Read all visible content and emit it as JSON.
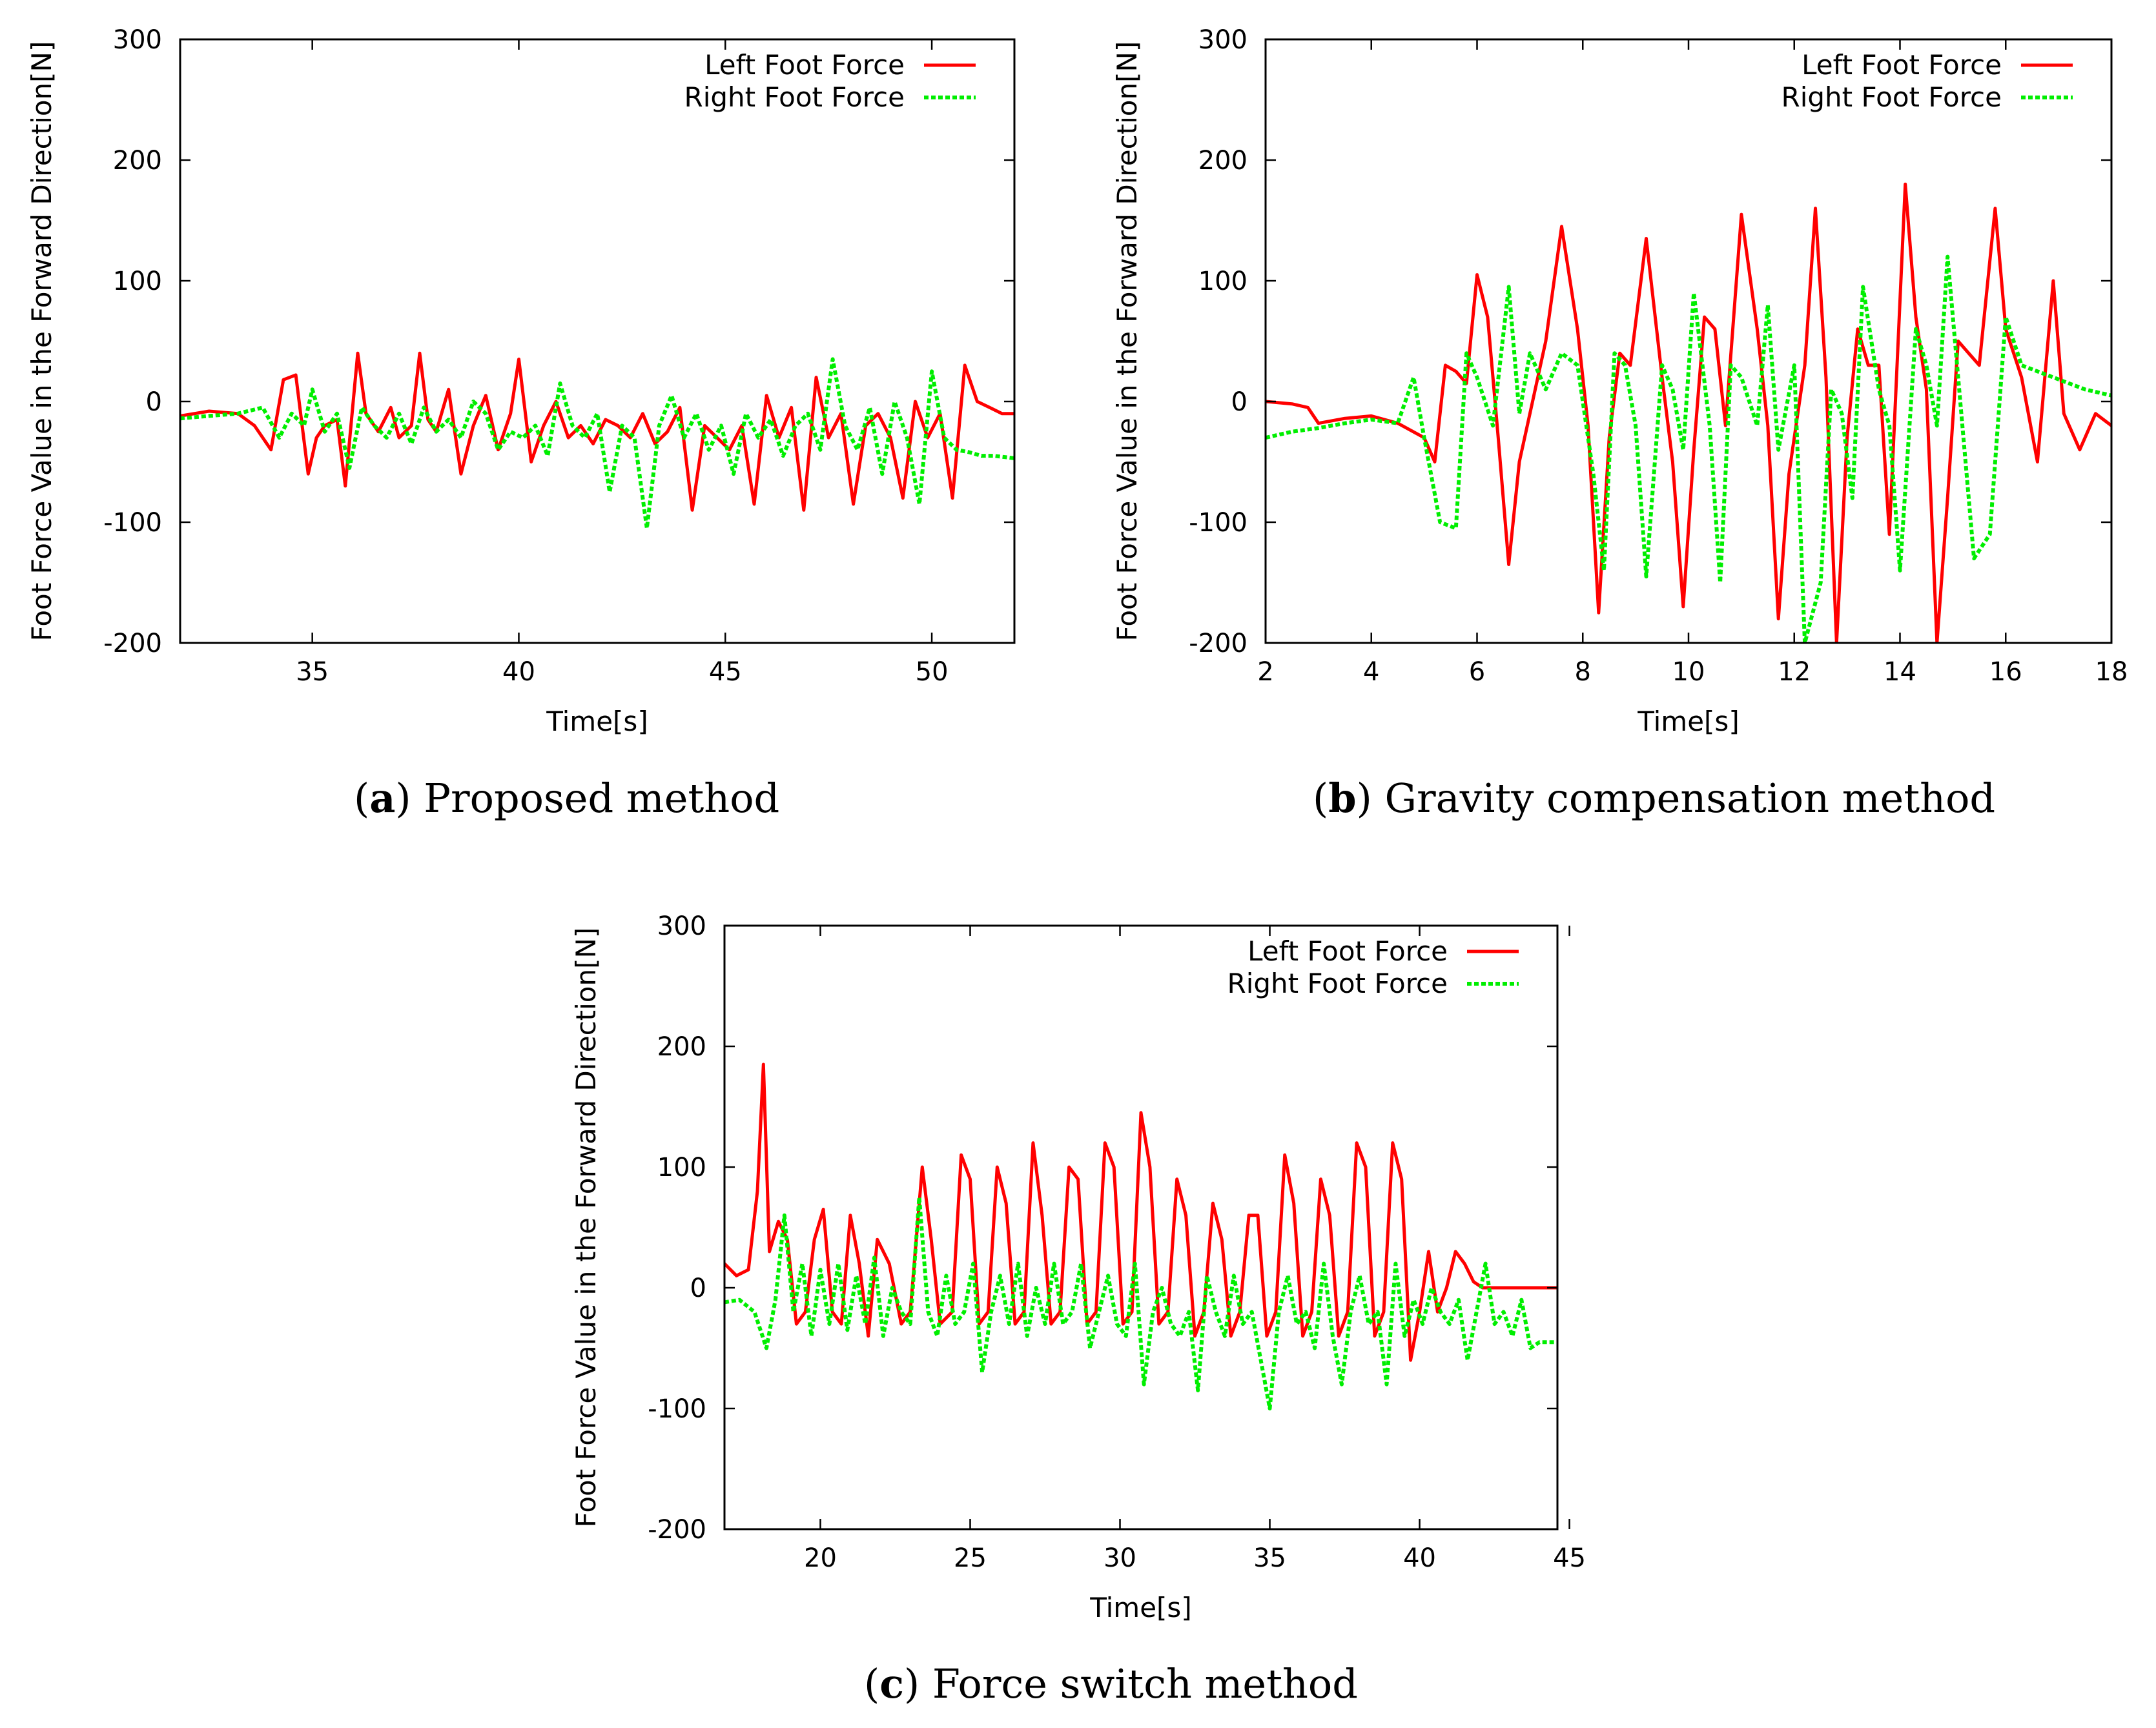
{
  "colors": {
    "left": "#ff0000",
    "right": "#00ee00",
    "axis": "#000000"
  },
  "panels": [
    {
      "caption_letter": "a",
      "caption_text": "Proposed method",
      "chart_data": {
        "type": "line",
        "title": "",
        "xlabel": "Time[s]",
        "ylabel": "Foot Force Value in the Forward Direction[N]",
        "xlim": [
          31.8,
          52
        ],
        "ylim": [
          -200,
          300
        ],
        "xticks": [
          35,
          40,
          45,
          50
        ],
        "yticks": [
          -200,
          -100,
          0,
          100,
          200,
          300
        ],
        "legend": "top-right",
        "series": [
          {
            "name": "Left Foot Force",
            "style": "solid",
            "x": [
              31.8,
              32.5,
              33.2,
              33.6,
              34.0,
              34.3,
              34.6,
              34.9,
              35.1,
              35.3,
              35.6,
              35.8,
              36.1,
              36.3,
              36.6,
              36.9,
              37.1,
              37.4,
              37.6,
              37.8,
              38.0,
              38.3,
              38.6,
              38.9,
              39.2,
              39.5,
              39.8,
              40.0,
              40.3,
              40.6,
              40.9,
              41.2,
              41.5,
              41.8,
              42.1,
              42.4,
              42.7,
              43.0,
              43.3,
              43.6,
              43.9,
              44.2,
              44.5,
              44.8,
              45.1,
              45.4,
              45.7,
              46.0,
              46.3,
              46.6,
              46.9,
              47.2,
              47.5,
              47.8,
              48.1,
              48.4,
              48.7,
              49.0,
              49.3,
              49.6,
              49.9,
              50.2,
              50.5,
              50.8,
              51.1,
              51.4,
              51.7,
              52.0
            ],
            "y": [
              -12,
              -8,
              -10,
              -20,
              -40,
              18,
              22,
              -60,
              -30,
              -20,
              -15,
              -70,
              40,
              -10,
              -25,
              -5,
              -30,
              -20,
              40,
              -15,
              -25,
              10,
              -60,
              -20,
              5,
              -40,
              -10,
              35,
              -50,
              -20,
              0,
              -30,
              -20,
              -35,
              -15,
              -20,
              -30,
              -10,
              -35,
              -25,
              -5,
              -90,
              -20,
              -30,
              -40,
              -20,
              -85,
              5,
              -30,
              -5,
              -90,
              20,
              -30,
              -10,
              -85,
              -20,
              -10,
              -30,
              -80,
              0,
              -30,
              -10,
              -80,
              30,
              0,
              -5,
              -10,
              -10
            ]
          },
          {
            "name": "Right Foot Force",
            "style": "dashed",
            "x": [
              31.8,
              32.5,
              33.2,
              33.8,
              34.2,
              34.5,
              34.8,
              35.0,
              35.3,
              35.6,
              35.9,
              36.2,
              36.5,
              36.8,
              37.1,
              37.4,
              37.7,
              38.0,
              38.3,
              38.6,
              38.9,
              39.2,
              39.5,
              39.8,
              40.1,
              40.4,
              40.7,
              41.0,
              41.3,
              41.6,
              41.9,
              42.2,
              42.5,
              42.8,
              43.1,
              43.4,
              43.7,
              44.0,
              44.3,
              44.6,
              44.9,
              45.2,
              45.5,
              45.8,
              46.1,
              46.4,
              46.7,
              47.0,
              47.3,
              47.6,
              47.9,
              48.2,
              48.5,
              48.8,
              49.1,
              49.4,
              49.7,
              50.0,
              50.3,
              50.6,
              50.9,
              51.2,
              51.5,
              52.0
            ],
            "y": [
              -14,
              -12,
              -10,
              -5,
              -30,
              -10,
              -20,
              10,
              -25,
              -10,
              -55,
              -5,
              -20,
              -30,
              -10,
              -35,
              -5,
              -25,
              -15,
              -30,
              0,
              -10,
              -40,
              -25,
              -30,
              -20,
              -45,
              15,
              -20,
              -30,
              -10,
              -75,
              -20,
              -30,
              -105,
              -20,
              5,
              -30,
              -10,
              -40,
              -20,
              -60,
              -10,
              -30,
              -15,
              -45,
              -20,
              -10,
              -40,
              35,
              -20,
              -40,
              -5,
              -60,
              0,
              -30,
              -85,
              25,
              -30,
              -40,
              -42,
              -45,
              -45,
              -47
            ]
          }
        ]
      }
    },
    {
      "caption_letter": "b",
      "caption_text": "Gravity compensation method",
      "chart_data": {
        "type": "line",
        "title": "",
        "xlabel": "Time[s]",
        "ylabel": "Foot Force Value in the Forward Direction[N]",
        "xlim": [
          2,
          18
        ],
        "ylim": [
          -200,
          300
        ],
        "xticks": [
          2,
          4,
          6,
          8,
          10,
          12,
          14,
          16,
          18
        ],
        "yticks": [
          -200,
          -100,
          0,
          100,
          200,
          300
        ],
        "legend": "top-right",
        "series": [
          {
            "name": "Left Foot Force",
            "style": "solid",
            "x": [
              2.0,
              2.5,
              2.8,
              3.0,
              3.5,
              4.0,
              4.5,
              5.0,
              5.2,
              5.4,
              5.6,
              5.8,
              6.0,
              6.2,
              6.4,
              6.6,
              6.8,
              7.0,
              7.3,
              7.6,
              7.9,
              8.1,
              8.3,
              8.5,
              8.7,
              8.9,
              9.2,
              9.5,
              9.7,
              9.9,
              10.1,
              10.3,
              10.5,
              10.7,
              11.0,
              11.3,
              11.5,
              11.7,
              11.9,
              12.2,
              12.4,
              12.6,
              12.8,
              13.0,
              13.2,
              13.4,
              13.6,
              13.8,
              14.1,
              14.3,
              14.5,
              14.7,
              14.9,
              15.1,
              15.3,
              15.5,
              15.8,
              16.0,
              16.3,
              16.6,
              16.9,
              17.1,
              17.4,
              17.7,
              18.0
            ],
            "y": [
              0,
              -2,
              -5,
              -18,
              -14,
              -12,
              -18,
              -30,
              -50,
              30,
              25,
              15,
              105,
              70,
              -30,
              -135,
              -50,
              -10,
              50,
              145,
              60,
              -20,
              -175,
              -30,
              40,
              30,
              135,
              20,
              -50,
              -170,
              -40,
              70,
              60,
              -20,
              155,
              60,
              -20,
              -180,
              -60,
              30,
              160,
              20,
              -200,
              -30,
              60,
              30,
              30,
              -110,
              180,
              70,
              10,
              -200,
              -80,
              50,
              40,
              30,
              160,
              60,
              20,
              -50,
              100,
              -10,
              -40,
              -10,
              -20
            ]
          },
          {
            "name": "Right Foot Force",
            "style": "dashed",
            "x": [
              2.0,
              2.5,
              3.0,
              3.5,
              4.0,
              4.5,
              4.8,
              5.0,
              5.3,
              5.6,
              5.8,
              6.0,
              6.3,
              6.6,
              6.8,
              7.0,
              7.3,
              7.6,
              7.9,
              8.2,
              8.4,
              8.6,
              8.8,
              9.0,
              9.2,
              9.5,
              9.7,
              9.9,
              10.1,
              10.4,
              10.6,
              10.8,
              11.0,
              11.3,
              11.5,
              11.7,
              12.0,
              12.2,
              12.5,
              12.7,
              12.9,
              13.1,
              13.3,
              13.6,
              13.8,
              14.0,
              14.3,
              14.5,
              14.7,
              14.9,
              15.1,
              15.4,
              15.7,
              16.0,
              16.3,
              16.6,
              16.9,
              17.2,
              17.5,
              18.0
            ],
            "y": [
              -30,
              -25,
              -22,
              -18,
              -15,
              -18,
              20,
              -30,
              -100,
              -105,
              40,
              20,
              -20,
              95,
              -10,
              40,
              10,
              40,
              30,
              -60,
              -140,
              40,
              30,
              -20,
              -145,
              30,
              10,
              -40,
              90,
              -20,
              -150,
              30,
              20,
              -20,
              80,
              -40,
              30,
              -200,
              -150,
              10,
              -10,
              -80,
              95,
              10,
              -20,
              -140,
              60,
              30,
              -20,
              120,
              20,
              -130,
              -110,
              70,
              30,
              25,
              20,
              15,
              10,
              5
            ]
          }
        ]
      }
    },
    {
      "caption_letter": "c",
      "caption_text": "Force switch method",
      "chart_data": {
        "type": "line",
        "title": "",
        "xlabel": "Time[s]",
        "ylabel": "Foot Force Value in the Forward Direction[N]",
        "xlim": [
          16.8,
          44.6
        ],
        "ylim": [
          -200,
          300
        ],
        "xticks": [
          20,
          25,
          30,
          35,
          40,
          45
        ],
        "yticks": [
          -200,
          -100,
          0,
          100,
          200,
          300
        ],
        "legend": "top-right",
        "series": [
          {
            "name": "Left Foot Force",
            "style": "solid",
            "x": [
              16.8,
              17.2,
              17.6,
              17.9,
              18.1,
              18.3,
              18.6,
              18.9,
              19.2,
              19.5,
              19.8,
              20.1,
              20.4,
              20.7,
              21.0,
              21.3,
              21.6,
              21.9,
              22.3,
              22.7,
              23.0,
              23.4,
              23.7,
              24.0,
              24.4,
              24.7,
              25.0,
              25.3,
              25.6,
              25.9,
              26.2,
              26.5,
              26.8,
              27.1,
              27.4,
              27.7,
              28.0,
              28.3,
              28.6,
              28.9,
              29.2,
              29.5,
              29.8,
              30.1,
              30.4,
              30.7,
              31.0,
              31.3,
              31.6,
              31.9,
              32.2,
              32.5,
              32.8,
              33.1,
              33.4,
              33.7,
              34.0,
              34.3,
              34.6,
              34.9,
              35.2,
              35.5,
              35.8,
              36.1,
              36.4,
              36.7,
              37.0,
              37.3,
              37.6,
              37.9,
              38.2,
              38.5,
              38.8,
              39.1,
              39.4,
              39.7,
              40.0,
              40.3,
              40.6,
              40.9,
              41.2,
              41.5,
              41.8,
              42.1,
              42.4,
              42.7,
              43.0,
              43.3,
              43.6,
              44.0,
              44.6
            ],
            "y": [
              20,
              10,
              15,
              80,
              185,
              30,
              55,
              40,
              -30,
              -20,
              40,
              65,
              -20,
              -30,
              60,
              20,
              -40,
              40,
              20,
              -30,
              -20,
              100,
              40,
              -30,
              -20,
              110,
              90,
              -30,
              -20,
              100,
              70,
              -30,
              -20,
              120,
              60,
              -30,
              -20,
              100,
              90,
              -30,
              -20,
              120,
              100,
              -30,
              -20,
              145,
              100,
              -30,
              -20,
              90,
              60,
              -40,
              -20,
              70,
              40,
              -40,
              -20,
              60,
              60,
              -40,
              -20,
              110,
              70,
              -40,
              -20,
              90,
              60,
              -40,
              -20,
              120,
              100,
              -40,
              -20,
              120,
              90,
              -60,
              -20,
              30,
              -20,
              0,
              30,
              20,
              5,
              0,
              0,
              0,
              0,
              0,
              0,
              0,
              0
            ]
          },
          {
            "name": "Right Foot Force",
            "style": "dashed",
            "x": [
              16.8,
              17.3,
              17.8,
              18.2,
              18.5,
              18.8,
              19.1,
              19.4,
              19.7,
              20.0,
              20.3,
              20.6,
              20.9,
              21.2,
              21.5,
              21.8,
              22.1,
              22.4,
              22.7,
              23.0,
              23.3,
              23.6,
              23.9,
              24.2,
              24.5,
              24.8,
              25.1,
              25.4,
              25.7,
              26.0,
              26.3,
              26.6,
              26.9,
              27.2,
              27.5,
              27.8,
              28.1,
              28.4,
              28.7,
              29.0,
              29.3,
              29.6,
              29.9,
              30.2,
              30.5,
              30.8,
              31.1,
              31.4,
              31.7,
              32.0,
              32.3,
              32.6,
              32.9,
              33.2,
              33.5,
              33.8,
              34.1,
              34.4,
              34.7,
              35.0,
              35.3,
              35.6,
              35.9,
              36.2,
              36.5,
              36.8,
              37.1,
              37.4,
              37.7,
              38.0,
              38.3,
              38.6,
              38.9,
              39.2,
              39.5,
              39.8,
              40.1,
              40.4,
              40.7,
              41.0,
              41.3,
              41.6,
              41.9,
              42.2,
              42.5,
              42.8,
              43.1,
              43.4,
              43.7,
              44.0,
              44.6
            ],
            "y": [
              -12,
              -10,
              -20,
              -50,
              -10,
              60,
              -20,
              20,
              -40,
              15,
              -30,
              20,
              -35,
              10,
              -30,
              25,
              -40,
              0,
              -20,
              -30,
              75,
              -20,
              -40,
              10,
              -30,
              -20,
              20,
              -70,
              -20,
              10,
              -30,
              20,
              -40,
              0,
              -30,
              20,
              -30,
              -20,
              20,
              -50,
              -20,
              10,
              -30,
              -40,
              20,
              -80,
              -20,
              0,
              -30,
              -40,
              -20,
              -85,
              10,
              -20,
              -40,
              10,
              -30,
              -20,
              -60,
              -100,
              -20,
              10,
              -30,
              -20,
              -50,
              20,
              -40,
              -80,
              -20,
              10,
              -30,
              -20,
              -80,
              20,
              -40,
              -10,
              -30,
              0,
              -20,
              -30,
              -10,
              -60,
              -20,
              20,
              -30,
              -20,
              -40,
              -10,
              -50,
              -45,
              -45
            ]
          }
        ]
      }
    }
  ]
}
